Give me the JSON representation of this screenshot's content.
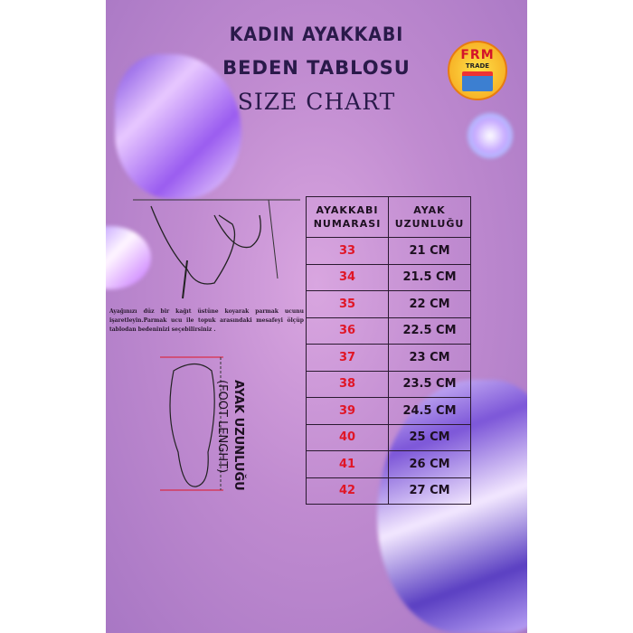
{
  "header": {
    "title_line1": "KADIN AYAKKABI",
    "title_line2": "BEDEN TABLOSU",
    "title_line3": "SIZE CHART"
  },
  "logo": {
    "text": "FRM",
    "subtext": "TRADE"
  },
  "instructions": "Ayağınızı düz bir kağıt üstüne koyarak parmak ucunu işaretleyin.Parmak ucu ile topuk arasındaki mesafeyi ölçüp tablodan bedeninizi seçebilirsiniz .",
  "foot_label": {
    "line1": "AYAK UZUNLUĞU",
    "line2": "(FOOT LENGHT)"
  },
  "table": {
    "headers": [
      "AYAKKABI NUMARASI",
      "AYAK UZUNLUĞU"
    ],
    "rows": [
      [
        "33",
        "21 CM"
      ],
      [
        "34",
        "21.5 CM"
      ],
      [
        "35",
        "22 CM"
      ],
      [
        "36",
        "22.5 CM"
      ],
      [
        "37",
        "23 CM"
      ],
      [
        "38",
        "23.5 CM"
      ],
      [
        "39",
        "24.5 CM"
      ],
      [
        "40",
        "25 CM"
      ],
      [
        "41",
        "26 CM"
      ],
      [
        "42",
        "27 CM"
      ]
    ]
  },
  "colors": {
    "background": "#c08bd0",
    "size_number": "#e01626",
    "text": "#1d1020"
  }
}
